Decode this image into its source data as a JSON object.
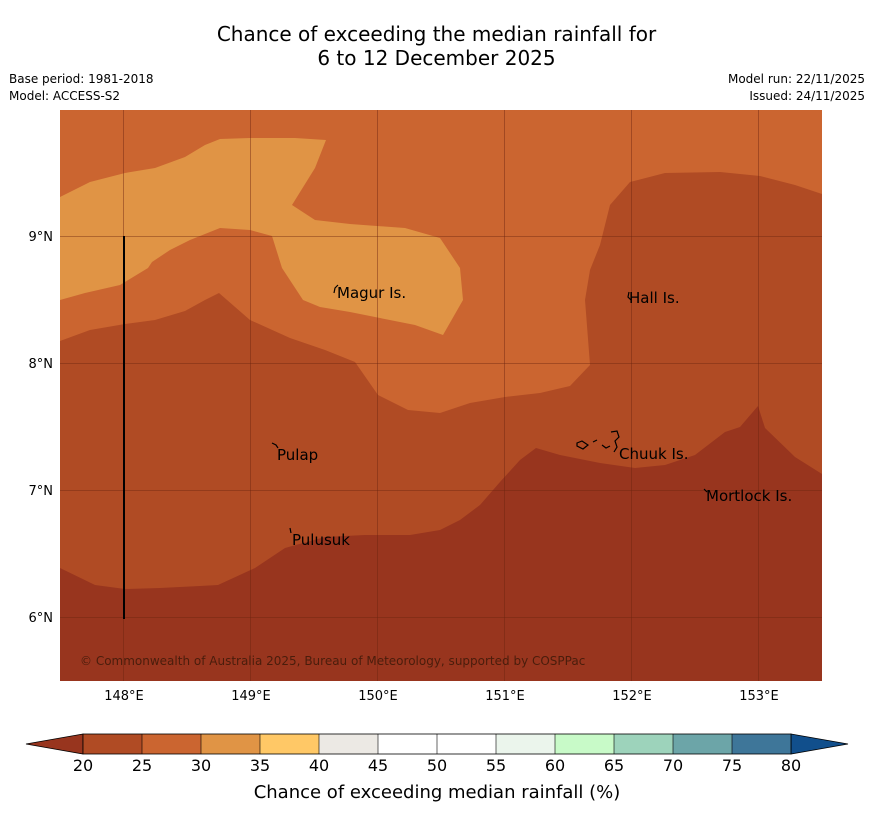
{
  "title": {
    "line1": "Chance of exceeding the median rainfall for",
    "line2": "6 to 12 December 2025"
  },
  "meta": {
    "base_period": "Base period: 1981-2018",
    "model": "Model: ACCESS-S2",
    "model_run": "Model run: 22/11/2025",
    "issued": "Issued: 24/11/2025"
  },
  "map": {
    "lat_labels": [
      "9°N",
      "8°N",
      "7°N",
      "6°N"
    ],
    "lon_labels": [
      "148°E",
      "149°E",
      "150°E",
      "151°E",
      "152°E",
      "153°E"
    ],
    "places": [
      "Magur Is.",
      "Hall Is.",
      "Pulap",
      "Chuuk Is.",
      "Mortlock Is.",
      "Pulusuk"
    ],
    "copyright": "© Commonwealth of Australia 2025, Bureau of Meteorology, supported by COSPPac",
    "colors": {
      "20_25": "#b04b24",
      "25_30": "#cb6530",
      "30_35": "#e09445",
      "below_20": "#98351e"
    }
  },
  "colorbar": {
    "ticks": [
      "20",
      "25",
      "30",
      "35",
      "40",
      "45",
      "50",
      "55",
      "60",
      "65",
      "70",
      "75",
      "80"
    ],
    "colors": [
      "#b04b24",
      "#cb6530",
      "#e09445",
      "#ffc866",
      "#ece9e4",
      "#ffffff",
      "#ffffff",
      "#ebf5ec",
      "#c8fac8",
      "#9dd3bb",
      "#6ca5a8",
      "#3e7699"
    ],
    "under_color": "#98351e",
    "over_color": "#114f8c",
    "title": "Chance of exceeding median rainfall (%)"
  }
}
